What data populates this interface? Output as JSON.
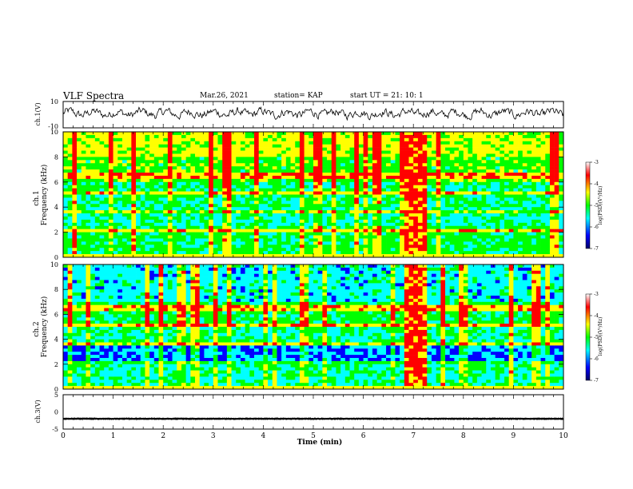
{
  "header": {
    "title": "VLF Spectra",
    "date": "Mar.26, 2021",
    "station": "station= KAP",
    "start_time": "start  UT  =   21: 10: 1"
  },
  "chart_data": [
    {
      "type": "line",
      "ylabel": "ch.1(V)",
      "ylim": [
        -10,
        10
      ],
      "yticks": [
        "10",
        "-10"
      ],
      "xlim": [
        0,
        10
      ],
      "series": [
        {
          "description": "noisy waveform oscillating around ~+1 V",
          "color": "#000000"
        }
      ]
    },
    {
      "type": "heatmap",
      "ylabel": "ch.1\nFrequency (kHz)",
      "ylabel_line1": "ch.1",
      "ylabel_line2": "Frequency (kHz)",
      "ylim": [
        0,
        10
      ],
      "yticks": [
        "0",
        "2",
        "4",
        "6",
        "8",
        "10"
      ],
      "xlim": [
        0,
        10
      ],
      "colorbar": {
        "label": "log(PSD)(V²/Hz)",
        "ticks": [
          "-3",
          "-4",
          "-5",
          "-6",
          "-7"
        ],
        "range": [
          -7,
          -3
        ],
        "colors": [
          "#000066",
          "#0000ff",
          "#00ffff",
          "#00ff00",
          "#ffff00",
          "#ff0000",
          "#ffffff"
        ]
      },
      "burst_interval_min": [
        6.85,
        7.3
      ]
    },
    {
      "type": "heatmap",
      "ylabel_line1": "ch.2",
      "ylabel_line2": "Frequency (kHz)",
      "ylim": [
        0,
        10
      ],
      "yticks": [
        "0",
        "2",
        "4",
        "6",
        "8",
        "10"
      ],
      "xlim": [
        0,
        10
      ],
      "colorbar": {
        "label": "log(PSD)(V²/Hz)",
        "ticks": [
          "-3",
          "-4",
          "-5",
          "-6",
          "-7"
        ],
        "range": [
          -7,
          -3
        ]
      },
      "burst_interval_min": [
        6.85,
        7.3
      ]
    },
    {
      "type": "line",
      "ylabel": "ch.3(V)",
      "ylim": [
        -5,
        5
      ],
      "yticks": [
        "5",
        "0",
        "-5"
      ],
      "xlim": [
        0,
        10
      ],
      "series": [
        {
          "description": "dense black band near -2 V",
          "color": "#000000"
        }
      ]
    }
  ],
  "xaxis": {
    "label": "Time (min)",
    "ticks": [
      "0",
      "1",
      "2",
      "3",
      "4",
      "5",
      "6",
      "7",
      "8",
      "9",
      "10"
    ]
  }
}
